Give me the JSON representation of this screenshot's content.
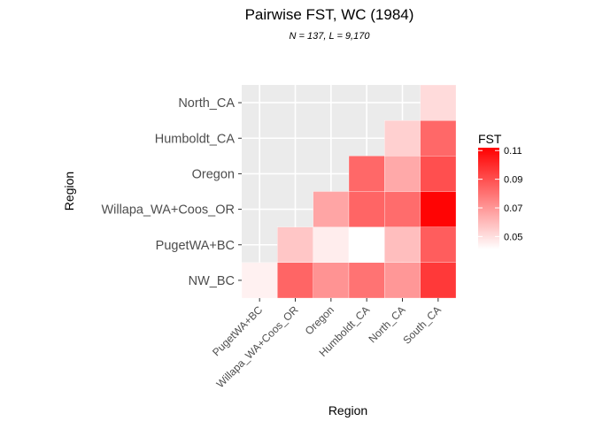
{
  "chart_data": {
    "type": "heatmap",
    "title": "Pairwise FST, WC (1984)",
    "subtitle": "N = 137, L = 9,170",
    "xlabel": "Region",
    "ylabel": "Region",
    "x_categories": [
      "PugetWA+BC",
      "Willapa_WA+Coos_OR",
      "Oregon",
      "Humboldt_CA",
      "North_CA",
      "South_CA"
    ],
    "y_categories": [
      "NW_BC",
      "PugetWA+BC",
      "Willapa_WA+Coos_OR",
      "Oregon",
      "Humboldt_CA",
      "North_CA"
    ],
    "cells": [
      {
        "x": "PugetWA+BC",
        "y": "NW_BC",
        "value": 0.045
      },
      {
        "x": "Willapa_WA+Coos_OR",
        "y": "NW_BC",
        "value": 0.084
      },
      {
        "x": "Oregon",
        "y": "NW_BC",
        "value": 0.071
      },
      {
        "x": "Humboldt_CA",
        "y": "NW_BC",
        "value": 0.08
      },
      {
        "x": "North_CA",
        "y": "NW_BC",
        "value": 0.07
      },
      {
        "x": "South_CA",
        "y": "NW_BC",
        "value": 0.096
      },
      {
        "x": "Willapa_WA+Coos_OR",
        "y": "PugetWA+BC",
        "value": 0.057
      },
      {
        "x": "Oregon",
        "y": "PugetWA+BC",
        "value": 0.046
      },
      {
        "x": "Humboldt_CA",
        "y": "PugetWA+BC",
        "value": 0.041
      },
      {
        "x": "North_CA",
        "y": "PugetWA+BC",
        "value": 0.059
      },
      {
        "x": "South_CA",
        "y": "PugetWA+BC",
        "value": 0.086
      },
      {
        "x": "Oregon",
        "y": "Willapa_WA+Coos_OR",
        "value": 0.066
      },
      {
        "x": "Humboldt_CA",
        "y": "Willapa_WA+Coos_OR",
        "value": 0.084
      },
      {
        "x": "North_CA",
        "y": "Willapa_WA+Coos_OR",
        "value": 0.082
      },
      {
        "x": "South_CA",
        "y": "Willapa_WA+Coos_OR",
        "value": 0.111
      },
      {
        "x": "Humboldt_CA",
        "y": "Oregon",
        "value": 0.083
      },
      {
        "x": "North_CA",
        "y": "Oregon",
        "value": 0.065
      },
      {
        "x": "South_CA",
        "y": "Oregon",
        "value": 0.09
      },
      {
        "x": "North_CA",
        "y": "Humboldt_CA",
        "value": 0.054
      },
      {
        "x": "South_CA",
        "y": "Humboldt_CA",
        "value": 0.083
      },
      {
        "x": "South_CA",
        "y": "North_CA",
        "value": 0.051
      }
    ],
    "color_scale": {
      "low_color": "#ffffff",
      "high_color": "#ff0000",
      "min": 0.041,
      "max": 0.112
    },
    "legend": {
      "title": "FST",
      "position": "right",
      "ticks": [
        0.05,
        0.07,
        0.09,
        0.11
      ],
      "tick_labels": [
        "0.05",
        "0.07",
        "0.09",
        "0.11"
      ]
    },
    "panel_background": "#ebebeb",
    "grid": true
  }
}
